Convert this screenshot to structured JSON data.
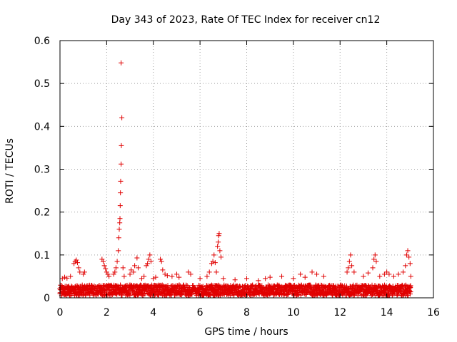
{
  "chart_data": {
    "type": "scatter",
    "title": "Day 343 of 2023, Rate Of TEC Index for receiver cn12",
    "xlabel": "GPS time / hours",
    "ylabel": "ROTI / TECUs",
    "xlim": [
      0,
      16
    ],
    "ylim": [
      0,
      0.6
    ],
    "x_ticks": [
      "0",
      "2",
      "4",
      "6",
      "8",
      "10",
      "12",
      "14",
      "16"
    ],
    "y_ticks": [
      "0",
      "0.1",
      "0.2",
      "0.3",
      "0.4",
      "0.5",
      "0.6"
    ],
    "grid": true,
    "marker": "+",
    "color": "#e00000",
    "baseline": {
      "x_start": 0,
      "x_end": 15.05,
      "y_low": 0.005,
      "y_high": 0.03,
      "spacing_hours": 0.025
    },
    "series": [
      {
        "name": "ROTI",
        "points": [
          [
            0.1,
            0.045
          ],
          [
            0.2,
            0.048
          ],
          [
            0.3,
            0.046
          ],
          [
            0.45,
            0.05
          ],
          [
            0.6,
            0.08
          ],
          [
            0.65,
            0.085
          ],
          [
            0.7,
            0.088
          ],
          [
            0.75,
            0.082
          ],
          [
            0.8,
            0.07
          ],
          [
            0.85,
            0.06
          ],
          [
            1.0,
            0.055
          ],
          [
            1.05,
            0.06
          ],
          [
            1.8,
            0.09
          ],
          [
            1.85,
            0.085
          ],
          [
            1.9,
            0.075
          ],
          [
            1.95,
            0.068
          ],
          [
            2.0,
            0.06
          ],
          [
            2.05,
            0.055
          ],
          [
            2.1,
            0.05
          ],
          [
            2.3,
            0.055
          ],
          [
            2.35,
            0.06
          ],
          [
            2.4,
            0.07
          ],
          [
            2.45,
            0.085
          ],
          [
            2.5,
            0.11
          ],
          [
            2.52,
            0.14
          ],
          [
            2.54,
            0.16
          ],
          [
            2.56,
            0.175
          ],
          [
            2.57,
            0.185
          ],
          [
            2.58,
            0.215
          ],
          [
            2.59,
            0.245
          ],
          [
            2.6,
            0.272
          ],
          [
            2.62,
            0.312
          ],
          [
            2.63,
            0.355
          ],
          [
            2.65,
            0.42
          ],
          [
            2.62,
            0.548
          ],
          [
            2.7,
            0.07
          ],
          [
            2.75,
            0.05
          ],
          [
            3.0,
            0.055
          ],
          [
            3.05,
            0.065
          ],
          [
            3.15,
            0.06
          ],
          [
            3.2,
            0.075
          ],
          [
            3.3,
            0.093
          ],
          [
            3.35,
            0.07
          ],
          [
            3.5,
            0.045
          ],
          [
            3.6,
            0.05
          ],
          [
            3.7,
            0.075
          ],
          [
            3.75,
            0.08
          ],
          [
            3.8,
            0.09
          ],
          [
            3.85,
            0.1
          ],
          [
            3.9,
            0.085
          ],
          [
            4.0,
            0.045
          ],
          [
            4.1,
            0.048
          ],
          [
            4.3,
            0.09
          ],
          [
            4.35,
            0.085
          ],
          [
            4.4,
            0.065
          ],
          [
            4.5,
            0.055
          ],
          [
            4.6,
            0.052
          ],
          [
            4.8,
            0.05
          ],
          [
            5.0,
            0.055
          ],
          [
            5.1,
            0.048
          ],
          [
            5.5,
            0.06
          ],
          [
            5.6,
            0.055
          ],
          [
            6.0,
            0.045
          ],
          [
            6.3,
            0.05
          ],
          [
            6.4,
            0.06
          ],
          [
            6.5,
            0.08
          ],
          [
            6.55,
            0.085
          ],
          [
            6.6,
            0.1
          ],
          [
            6.65,
            0.082
          ],
          [
            6.7,
            0.06
          ],
          [
            6.75,
            0.12
          ],
          [
            6.78,
            0.13
          ],
          [
            6.8,
            0.145
          ],
          [
            6.82,
            0.15
          ],
          [
            6.85,
            0.11
          ],
          [
            6.9,
            0.095
          ],
          [
            7.0,
            0.045
          ],
          [
            7.5,
            0.042
          ],
          [
            8.0,
            0.045
          ],
          [
            8.5,
            0.04
          ],
          [
            8.8,
            0.045
          ],
          [
            9.0,
            0.048
          ],
          [
            9.5,
            0.05
          ],
          [
            10.0,
            0.045
          ],
          [
            10.3,
            0.055
          ],
          [
            10.5,
            0.048
          ],
          [
            10.8,
            0.06
          ],
          [
            11.0,
            0.055
          ],
          [
            11.3,
            0.05
          ],
          [
            12.3,
            0.06
          ],
          [
            12.35,
            0.07
          ],
          [
            12.4,
            0.085
          ],
          [
            12.45,
            0.1
          ],
          [
            12.5,
            0.075
          ],
          [
            12.6,
            0.06
          ],
          [
            13.0,
            0.05
          ],
          [
            13.2,
            0.058
          ],
          [
            13.4,
            0.07
          ],
          [
            13.45,
            0.09
          ],
          [
            13.5,
            0.1
          ],
          [
            13.55,
            0.085
          ],
          [
            13.7,
            0.05
          ],
          [
            13.9,
            0.055
          ],
          [
            14.0,
            0.06
          ],
          [
            14.1,
            0.055
          ],
          [
            14.3,
            0.05
          ],
          [
            14.5,
            0.055
          ],
          [
            14.7,
            0.06
          ],
          [
            14.8,
            0.075
          ],
          [
            14.85,
            0.1
          ],
          [
            14.9,
            0.11
          ],
          [
            14.95,
            0.095
          ],
          [
            15.0,
            0.08
          ],
          [
            15.03,
            0.05
          ]
        ]
      }
    ]
  }
}
